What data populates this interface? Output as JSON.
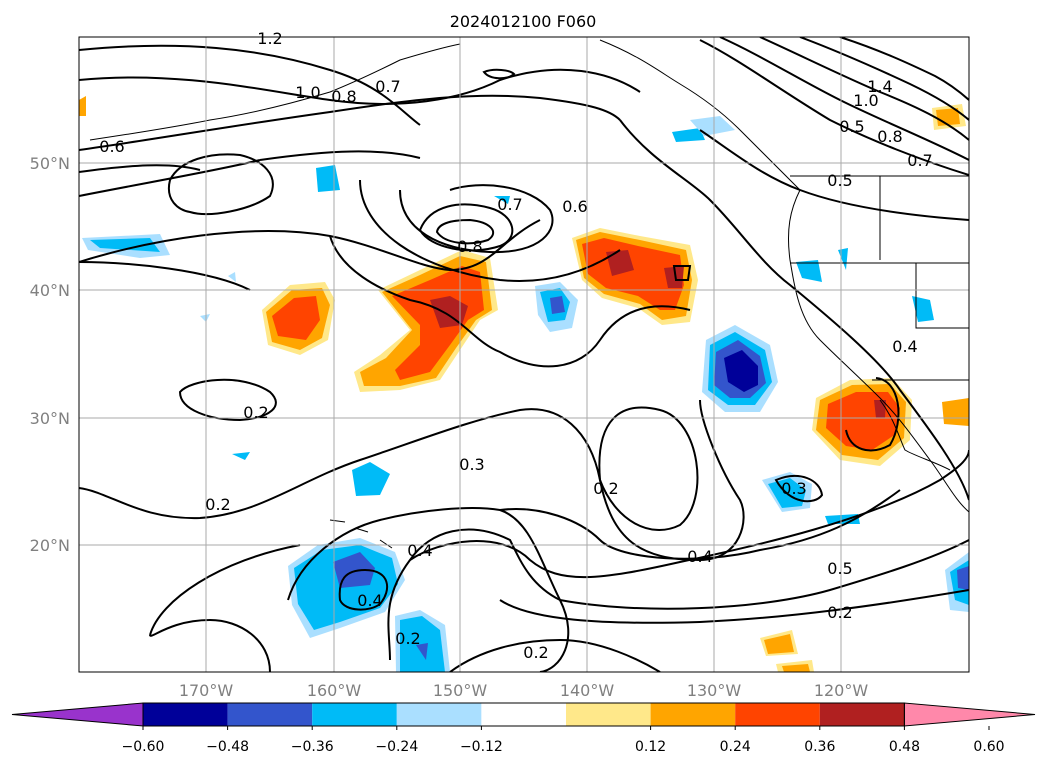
{
  "title": "2024012100 F060",
  "map": {
    "lat_ticks": [
      "50°N",
      "40°N",
      "30°N",
      "20°N"
    ],
    "lon_ticks": [
      "170°W",
      "160°W",
      "150°W",
      "140°W",
      "130°W",
      "120°W"
    ]
  },
  "contour_labels": [
    "1.2",
    "1.0",
    "0.8",
    "0.7",
    "0.6",
    "0.7",
    "0.6",
    "0.8",
    "1.4",
    "1.0",
    "0.5",
    "0.8",
    "0.7",
    "0.5",
    "0.4",
    "0.2",
    "0.2",
    "0.3",
    "0.2",
    "0.3",
    "0.4",
    "0.4",
    "0.5",
    "0.4",
    "0.2",
    "0.2",
    "0.2"
  ],
  "colorbar": {
    "tick_labels": [
      "−0.60",
      "−0.48",
      "−0.36",
      "−0.24",
      "−0.12",
      "0.12",
      "0.24",
      "0.36",
      "0.48",
      "0.60"
    ],
    "colors": [
      "#9933cc",
      "#000099",
      "#3355cc",
      "#00bbf7",
      "#aadfff",
      "#ffffff",
      "#ffe88a",
      "#ffa500",
      "#ff4400",
      "#b02020",
      "#ff88aa"
    ]
  },
  "colors": {
    "neg_strong": "#000099",
    "neg_mid": "#3355cc",
    "neg_light": "#00bbf7",
    "neg_faint": "#aadfff",
    "pos_faint": "#ffe88a",
    "pos_light": "#ffa500",
    "pos_mid": "#ff4400",
    "pos_strong": "#b02020"
  }
}
